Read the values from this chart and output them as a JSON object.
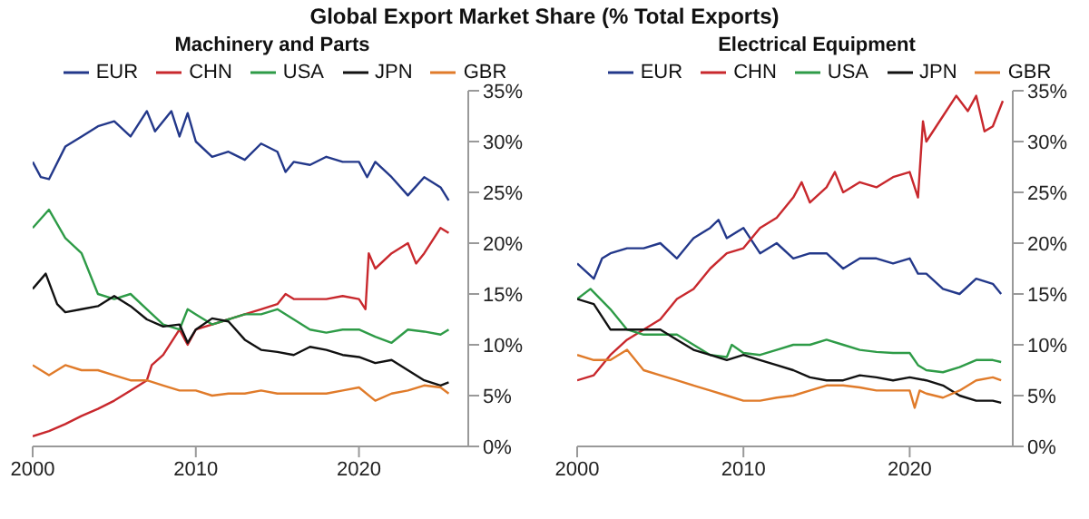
{
  "chart_data": [
    {
      "type": "line",
      "title": "Global Export Market Share (% Total Exports)",
      "subtitle": "Machinery and Parts",
      "legend": "top",
      "grid": false,
      "marker": "none",
      "line_style": "solid",
      "xlim": [
        2000,
        2026.7
      ],
      "xticks": [
        2000,
        2010,
        2020
      ],
      "ylim": [
        0,
        35
      ],
      "yticks": [
        {
          "value": 0,
          "label": "0%"
        },
        {
          "value": 5,
          "label": "5%"
        },
        {
          "value": 10,
          "label": "10%"
        },
        {
          "value": 15,
          "label": "15%"
        },
        {
          "value": 20,
          "label": "20%"
        },
        {
          "value": 25,
          "label": "25%"
        },
        {
          "value": 30,
          "label": "30%"
        },
        {
          "value": 35,
          "label": "35%"
        }
      ],
      "series": [
        {
          "name": "EUR",
          "color": "#23388a",
          "x": [
            2000,
            2000.5,
            2001,
            2002,
            2003,
            2004,
            2005,
            2006,
            2007,
            2007.5,
            2008.5,
            2009,
            2009.5,
            2010,
            2011,
            2012,
            2013,
            2014,
            2015,
            2015.5,
            2016,
            2017,
            2018,
            2019,
            2020,
            2020.5,
            2021,
            2022,
            2023,
            2024,
            2025,
            2025.5
          ],
          "values": [
            28,
            26.5,
            26.3,
            29.5,
            30.5,
            31.5,
            32,
            30.5,
            33,
            31,
            33,
            30.5,
            32.8,
            30,
            28.5,
            29,
            28.2,
            29.8,
            29,
            27,
            28,
            27.7,
            28.5,
            28,
            28,
            26.5,
            28,
            26.5,
            24.7,
            26.5,
            25.5,
            24.2
          ]
        },
        {
          "name": "CHN",
          "color": "#c8282d",
          "x": [
            2000,
            2001,
            2002,
            2003,
            2004,
            2005,
            2006,
            2007,
            2007.3,
            2008,
            2009,
            2009.5,
            2010,
            2011,
            2012,
            2013,
            2014,
            2015,
            2015.5,
            2016,
            2017,
            2018,
            2019,
            2020,
            2020.4,
            2020.6,
            2021,
            2022,
            2023,
            2023.5,
            2024,
            2025,
            2025.5
          ],
          "values": [
            1,
            1.5,
            2.2,
            3,
            3.7,
            4.5,
            5.5,
            6.5,
            8,
            9,
            11.5,
            10,
            11.5,
            12,
            12.5,
            13,
            13.5,
            14,
            15,
            14.5,
            14.5,
            14.5,
            14.8,
            14.5,
            13.5,
            19,
            17.5,
            19,
            20,
            18,
            19,
            21.5,
            21
          ]
        },
        {
          "name": "USA",
          "color": "#2e9b47",
          "x": [
            2000,
            2001,
            2002,
            2003,
            2004,
            2005,
            2006,
            2007,
            2008,
            2009,
            2009.5,
            2010,
            2011,
            2012,
            2013,
            2014,
            2015,
            2016,
            2017,
            2018,
            2019,
            2020,
            2021,
            2022,
            2023,
            2024,
            2025,
            2025.5
          ],
          "values": [
            21.5,
            23.3,
            20.5,
            19,
            15,
            14.5,
            15,
            13.5,
            12,
            11.5,
            13.5,
            13,
            12,
            12.5,
            13,
            13,
            13.5,
            12.5,
            11.5,
            11.2,
            11.5,
            11.5,
            10.8,
            10.2,
            11.5,
            11.3,
            11,
            11.5
          ]
        },
        {
          "name": "JPN",
          "color": "#111111",
          "x": [
            2000,
            2000.8,
            2001.5,
            2002,
            2003,
            2004,
            2005,
            2006,
            2007,
            2008,
            2009,
            2009.5,
            2010,
            2011,
            2012,
            2013,
            2014,
            2015,
            2016,
            2017,
            2018,
            2019,
            2020,
            2021,
            2022,
            2023,
            2024,
            2025,
            2025.5
          ],
          "values": [
            15.5,
            17,
            14,
            13.2,
            13.5,
            13.8,
            14.8,
            13.8,
            12.5,
            11.8,
            12,
            10.2,
            11.5,
            12.6,
            12.3,
            10.5,
            9.5,
            9.3,
            9,
            9.8,
            9.5,
            9,
            8.8,
            8.2,
            8.5,
            7.5,
            6.5,
            6,
            6.3
          ]
        },
        {
          "name": "GBR",
          "color": "#e07b2a",
          "x": [
            2000,
            2001,
            2002,
            2003,
            2004,
            2005,
            2006,
            2007,
            2008,
            2009,
            2010,
            2011,
            2012,
            2013,
            2014,
            2015,
            2016,
            2017,
            2018,
            2019,
            2020,
            2021,
            2022,
            2023,
            2024,
            2025,
            2025.5
          ],
          "values": [
            8,
            7,
            8,
            7.5,
            7.5,
            7,
            6.5,
            6.5,
            6,
            5.5,
            5.5,
            5,
            5.2,
            5.2,
            5.5,
            5.2,
            5.2,
            5.2,
            5.2,
            5.5,
            5.8,
            4.5,
            5.2,
            5.5,
            6,
            5.8,
            5.2
          ]
        }
      ]
    },
    {
      "type": "line",
      "subtitle": "Electrical Equipment",
      "legend": "top",
      "grid": false,
      "marker": "none",
      "line_style": "solid",
      "xlim": [
        2000,
        2026.2
      ],
      "xticks": [
        2000,
        2010,
        2020
      ],
      "ylim": [
        0,
        35
      ],
      "yticks": [
        {
          "value": 0,
          "label": "0%"
        },
        {
          "value": 5,
          "label": "5%"
        },
        {
          "value": 10,
          "label": "10%"
        },
        {
          "value": 15,
          "label": "15%"
        },
        {
          "value": 20,
          "label": "20%"
        },
        {
          "value": 25,
          "label": "25%"
        },
        {
          "value": 30,
          "label": "30%"
        },
        {
          "value": 35,
          "label": "35%"
        }
      ],
      "series": [
        {
          "name": "EUR",
          "color": "#23388a",
          "x": [
            2000,
            2001,
            2001.5,
            2002,
            2003,
            2004,
            2005,
            2006,
            2007,
            2008,
            2008.5,
            2009,
            2010,
            2011,
            2012,
            2013,
            2014,
            2015,
            2016,
            2017,
            2018,
            2019,
            2020,
            2020.5,
            2021,
            2022,
            2023,
            2024,
            2025,
            2025.5
          ],
          "values": [
            18,
            16.5,
            18.5,
            19,
            19.5,
            19.5,
            20,
            18.5,
            20.5,
            21.5,
            22.3,
            20.5,
            21.5,
            19,
            20,
            18.5,
            19,
            19,
            17.5,
            18.5,
            18.5,
            18,
            18.5,
            17,
            17,
            15.5,
            15,
            16.5,
            16,
            15
          ]
        },
        {
          "name": "CHN",
          "color": "#c8282d",
          "x": [
            2000,
            2001,
            2002,
            2003,
            2004,
            2005,
            2006,
            2007,
            2008,
            2009,
            2010,
            2011,
            2012,
            2013,
            2013.5,
            2014,
            2015,
            2015.5,
            2016,
            2017,
            2018,
            2019,
            2020,
            2020.5,
            2020.8,
            2021,
            2022,
            2022.8,
            2023.5,
            2024,
            2024.5,
            2025,
            2025.6
          ],
          "values": [
            6.5,
            7,
            9,
            10.5,
            11.5,
            12.5,
            14.5,
            15.5,
            17.5,
            19,
            19.5,
            21.5,
            22.5,
            24.5,
            26,
            24,
            25.5,
            27,
            25,
            26,
            25.5,
            26.5,
            27,
            24.5,
            32,
            30,
            32.5,
            34.5,
            33,
            34.5,
            31,
            31.5,
            34
          ]
        },
        {
          "name": "USA",
          "color": "#2e9b47",
          "x": [
            2000,
            2000.8,
            2002,
            2003,
            2004,
            2005,
            2006,
            2007,
            2008,
            2009,
            2009.3,
            2010,
            2011,
            2012,
            2013,
            2014,
            2015,
            2016,
            2017,
            2018,
            2019,
            2020,
            2020.5,
            2021,
            2022,
            2023,
            2024,
            2025,
            2025.5
          ],
          "values": [
            14.5,
            15.5,
            13.5,
            11.5,
            11,
            11,
            11,
            10,
            9,
            8.8,
            10,
            9.2,
            9,
            9.5,
            10,
            10,
            10.5,
            10,
            9.5,
            9.3,
            9.2,
            9.2,
            8,
            7.5,
            7.3,
            7.8,
            8.5,
            8.5,
            8.3
          ]
        },
        {
          "name": "JPN",
          "color": "#111111",
          "x": [
            2000,
            2001,
            2002,
            2003,
            2004,
            2005,
            2006,
            2007,
            2008,
            2009,
            2010,
            2011,
            2012,
            2013,
            2014,
            2015,
            2016,
            2017,
            2018,
            2019,
            2020,
            2021,
            2022,
            2023,
            2024,
            2025,
            2025.5
          ],
          "values": [
            14.5,
            14,
            11.5,
            11.5,
            11.5,
            11.5,
            10.5,
            9.5,
            9,
            8.5,
            9,
            8.5,
            8,
            7.5,
            6.8,
            6.5,
            6.5,
            7,
            6.8,
            6.5,
            6.8,
            6.5,
            6,
            5,
            4.5,
            4.5,
            4.3
          ]
        },
        {
          "name": "GBR",
          "color": "#e07b2a",
          "x": [
            2000,
            2001,
            2002,
            2003,
            2004,
            2005,
            2006,
            2007,
            2008,
            2009,
            2010,
            2011,
            2012,
            2013,
            2014,
            2015,
            2016,
            2017,
            2018,
            2019,
            2020,
            2020.3,
            2020.6,
            2021,
            2022,
            2023,
            2024,
            2025,
            2025.5
          ],
          "values": [
            9,
            8.5,
            8.5,
            9.5,
            7.5,
            7,
            6.5,
            6,
            5.5,
            5,
            4.5,
            4.5,
            4.8,
            5,
            5.5,
            6,
            6,
            5.8,
            5.5,
            5.5,
            5.5,
            3.8,
            5.5,
            5.2,
            4.8,
            5.5,
            6.5,
            6.8,
            6.5
          ]
        }
      ]
    }
  ]
}
